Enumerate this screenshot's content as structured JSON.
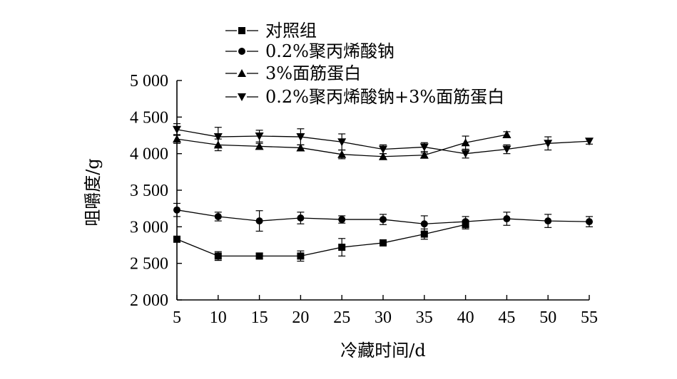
{
  "chart_data": {
    "type": "line",
    "xlabel": "冷藏时间/d",
    "ylabel": "咀嚼度/g",
    "x": [
      5,
      10,
      15,
      20,
      25,
      30,
      35,
      40,
      45,
      50,
      55
    ],
    "xlim": [
      5,
      55
    ],
    "ylim": [
      2000,
      5000
    ],
    "xticks": [
      "5",
      "10",
      "15",
      "20",
      "25",
      "30",
      "35",
      "40",
      "45",
      "50",
      "55"
    ],
    "yticks": [
      "2 000",
      "2 500",
      "3 000",
      "3 500",
      "4 000",
      "4 500",
      "5 000"
    ],
    "ytick_values": [
      2000,
      2500,
      3000,
      3500,
      4000,
      4500,
      5000
    ],
    "grid": false,
    "legend_position": "top",
    "series": [
      {
        "name": "对照组",
        "marker": "square",
        "values": [
          2830,
          2600,
          2600,
          2600,
          2720,
          2780,
          2900,
          3030,
          null,
          null,
          null
        ],
        "errors": [
          40,
          60,
          40,
          70,
          120,
          40,
          70,
          60,
          null,
          null,
          null
        ]
      },
      {
        "name": "0.2%聚丙烯酸钠",
        "marker": "circle",
        "values": [
          3230,
          3140,
          3080,
          3120,
          3100,
          3100,
          3040,
          3070,
          3110,
          3080,
          3070
        ],
        "errors": [
          90,
          60,
          140,
          80,
          50,
          70,
          110,
          70,
          90,
          90,
          70
        ]
      },
      {
        "name": "3%面筋蛋白",
        "marker": "triangle-up",
        "values": [
          4200,
          4120,
          4100,
          4080,
          3990,
          3960,
          3980,
          null,
          4260,
          null,
          null
        ],
        "errors": [
          60,
          80,
          40,
          40,
          60,
          40,
          30,
          null,
          40,
          null,
          null
        ]
      },
      {
        "name": "0.2%聚丙烯酸钠+3%面筋蛋白",
        "marker": "triangle-down",
        "values": [
          4330,
          4230,
          4240,
          4230,
          4160,
          4060,
          4090,
          4000,
          4060,
          4140,
          4170
        ],
        "errors": [
          80,
          130,
          80,
          110,
          110,
          60,
          60,
          60,
          60,
          90,
          40
        ]
      }
    ],
    "extra_segments": [
      {
        "series_index": 2,
        "from": [
          35,
          3980
        ],
        "to": [
          40,
          4150
        ],
        "errors_to": 90
      },
      {
        "series_index": 2,
        "from": [
          40,
          4150
        ],
        "to": [
          45,
          4260
        ],
        "errors_to": 0
      }
    ]
  }
}
